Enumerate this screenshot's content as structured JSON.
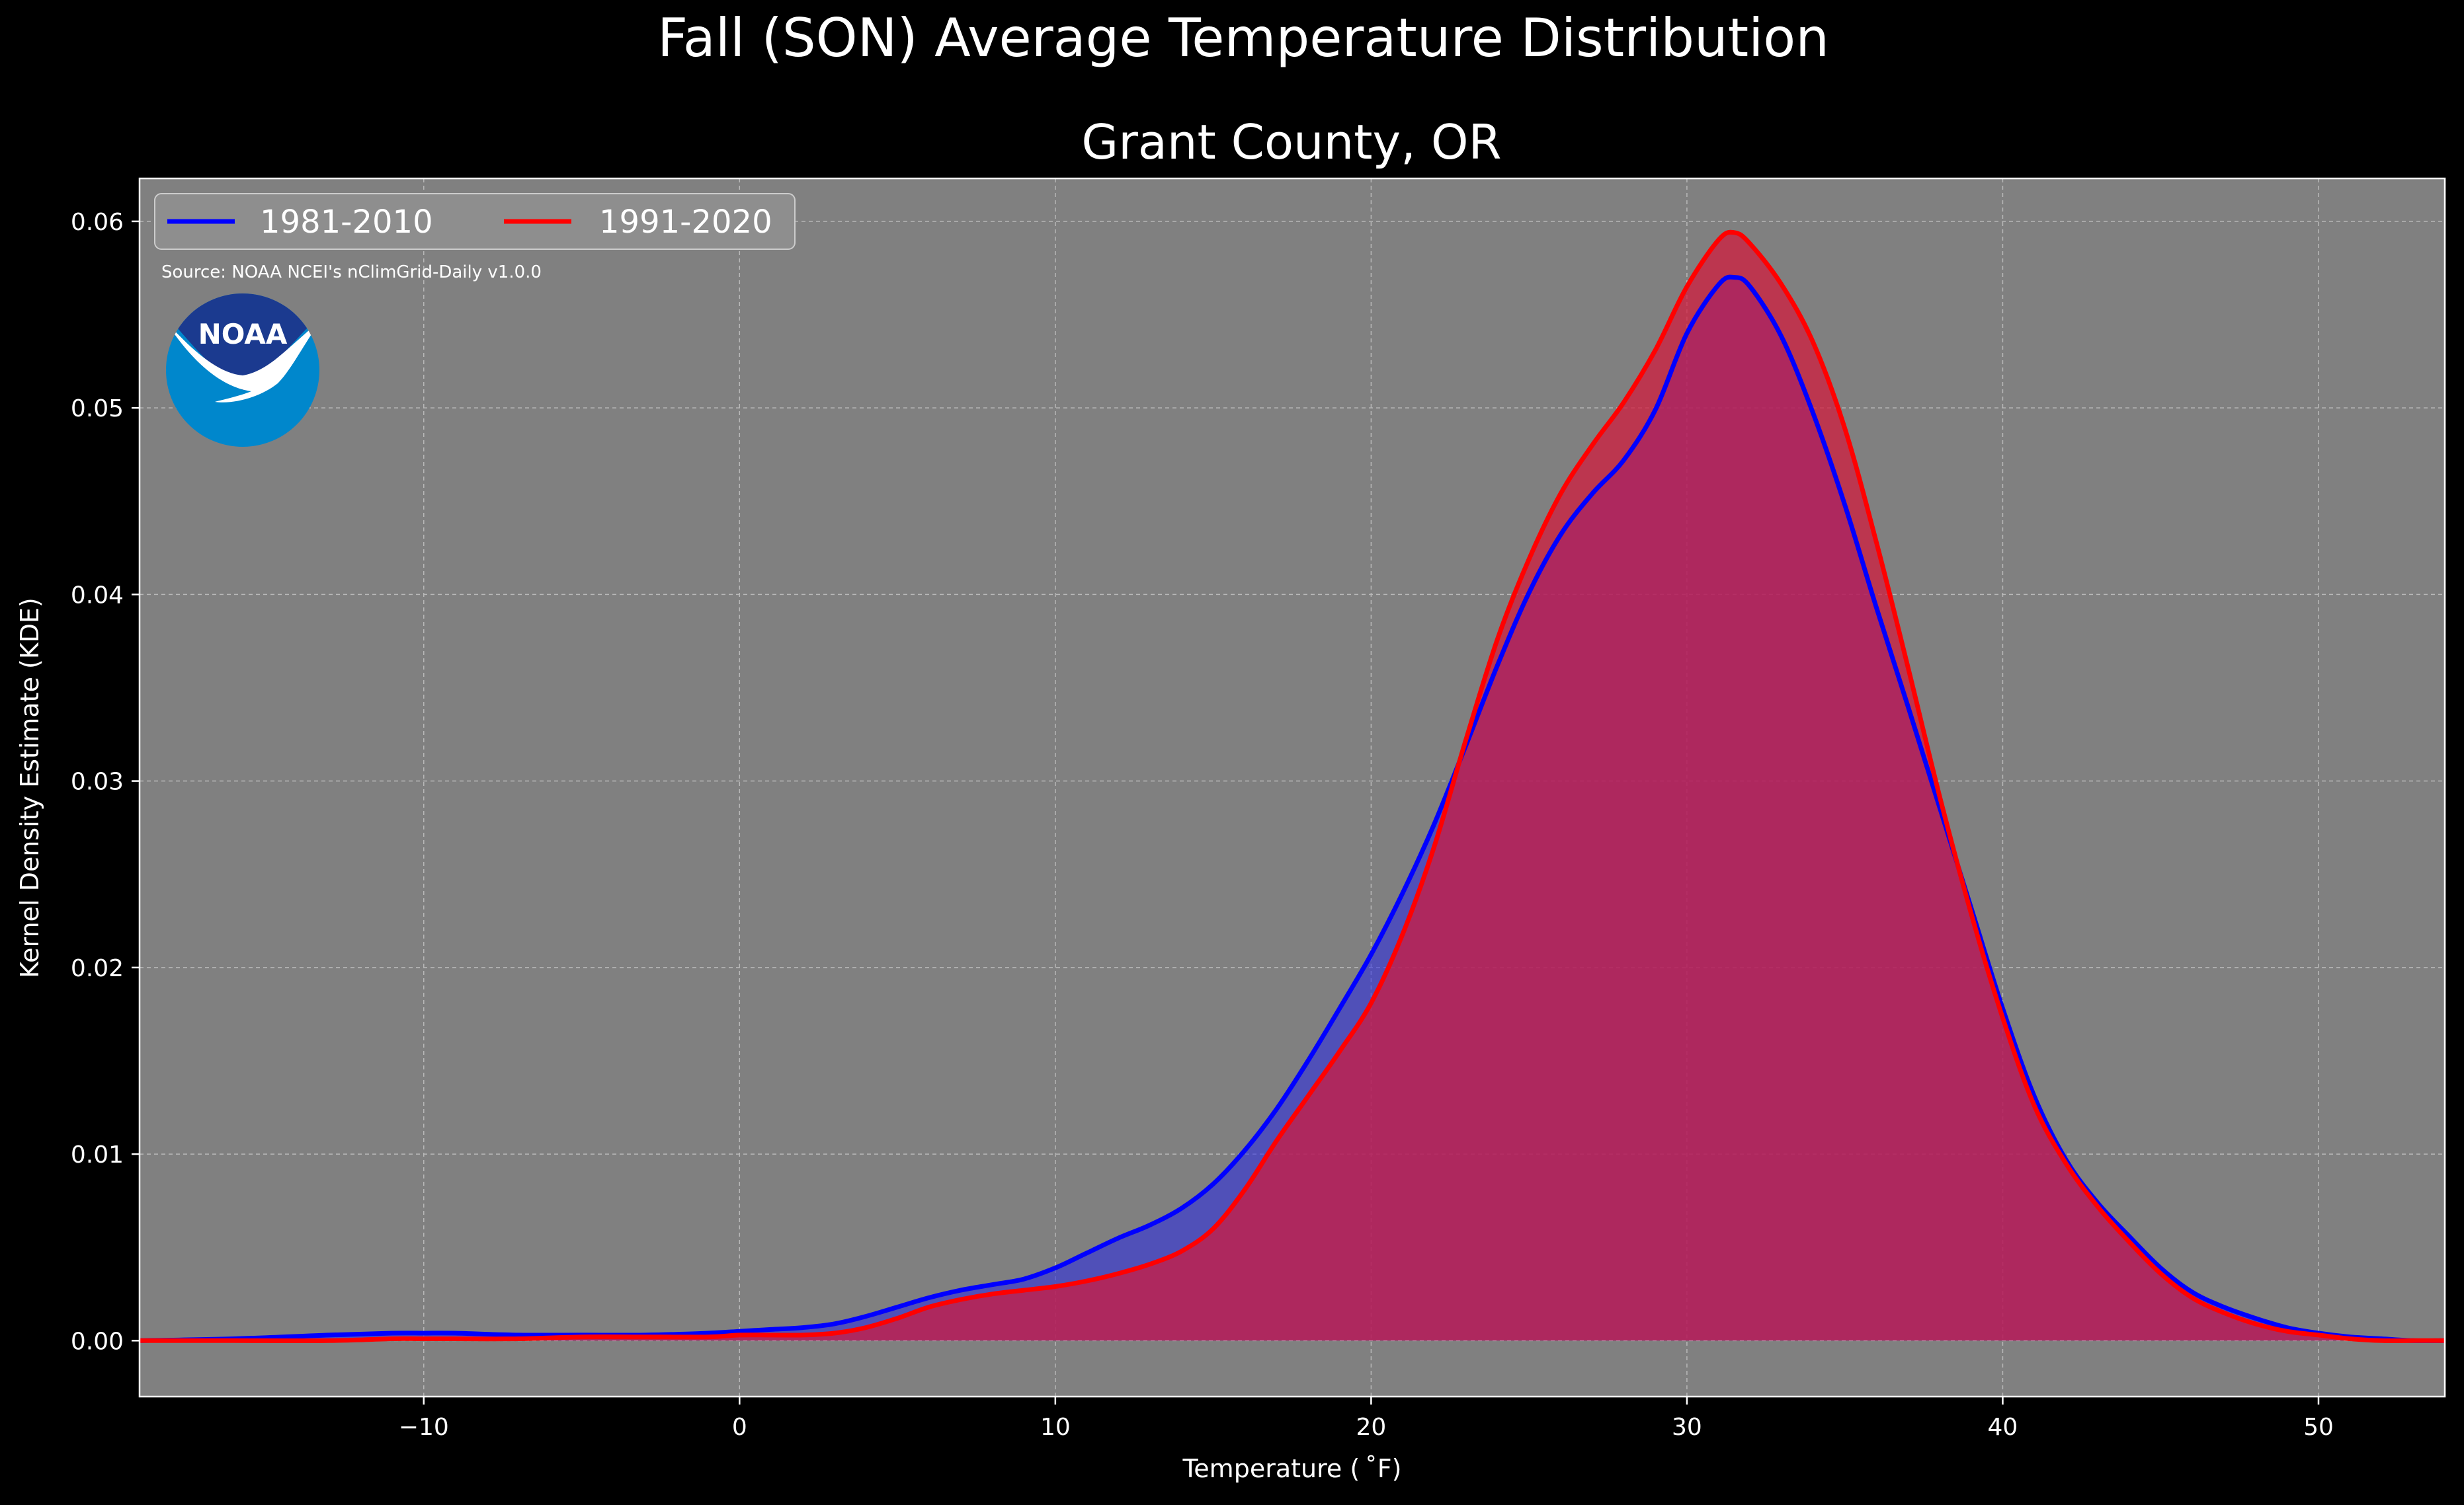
{
  "chart_data": {
    "type": "area",
    "title": "Fall (SON) Average Temperature Distribution",
    "subtitle": "Grant County, OR",
    "xlabel": "Temperature ($^\\circ$F)",
    "xlabel_display": "Temperature ( ˚F)",
    "ylabel": "Kernel Density Estimate (KDE)",
    "xlim": [
      -19,
      54
    ],
    "ylim": [
      -0.003,
      0.0623
    ],
    "xticks": [
      -10,
      0,
      10,
      20,
      30,
      40,
      50
    ],
    "xtick_labels": [
      "−10",
      "0",
      "10",
      "20",
      "30",
      "40",
      "50"
    ],
    "yticks": [
      0.0,
      0.01,
      0.02,
      0.03,
      0.04,
      0.05,
      0.06
    ],
    "ytick_labels": [
      "0.00",
      "0.01",
      "0.02",
      "0.03",
      "0.04",
      "0.05",
      "0.06"
    ],
    "grid": true,
    "legend_position": "top-left",
    "source_note": "Source: NOAA NCEI's nClimGrid-Daily v1.0.0",
    "logo_text": "NOAA",
    "series": [
      {
        "name": "1981-2010",
        "color": "#0000ff",
        "fill": "rgba(40,40,230,0.55)",
        "x": [
          -19,
          -16,
          -13,
          -11,
          -10,
          -9,
          -7,
          -5,
          -3,
          -1,
          0,
          1,
          2,
          3,
          4,
          5,
          6,
          7,
          8,
          9,
          10,
          11,
          12,
          13,
          14,
          15,
          16,
          17,
          18,
          19,
          20,
          21,
          22,
          23,
          24,
          25,
          26,
          27,
          28,
          29,
          30,
          31,
          31.5,
          32,
          33,
          34,
          35,
          36,
          37,
          38,
          39,
          40,
          41,
          42,
          43,
          44,
          45,
          46,
          47,
          48,
          49,
          50,
          51,
          52,
          53,
          54
        ],
        "y": [
          0.0,
          0.0001,
          0.0003,
          0.0004,
          0.0004,
          0.0004,
          0.0003,
          0.0003,
          0.0003,
          0.0004,
          0.0005,
          0.0006,
          0.0007,
          0.0009,
          0.0013,
          0.0018,
          0.0023,
          0.0027,
          0.003,
          0.0033,
          0.0039,
          0.0047,
          0.0055,
          0.0062,
          0.0071,
          0.0084,
          0.0102,
          0.0124,
          0.015,
          0.0178,
          0.0207,
          0.024,
          0.0277,
          0.0319,
          0.0362,
          0.0401,
          0.0432,
          0.0454,
          0.0472,
          0.0499,
          0.054,
          0.0566,
          0.057,
          0.0565,
          0.0538,
          0.0497,
          0.0448,
          0.0393,
          0.034,
          0.0286,
          0.0232,
          0.0178,
          0.0131,
          0.0097,
          0.0074,
          0.0056,
          0.0039,
          0.0026,
          0.0018,
          0.0012,
          0.0007,
          0.0004,
          0.0002,
          0.0001,
          0.0,
          0.0
        ]
      },
      {
        "name": "1991-2020",
        "color": "#ff0000",
        "fill": "rgba(210,25,60,0.72)",
        "x": [
          -19,
          -16,
          -13,
          -11,
          -10,
          -9,
          -7,
          -5,
          -3,
          -1,
          0,
          1,
          2,
          3,
          4,
          5,
          6,
          7,
          8,
          9,
          10,
          11,
          12,
          13,
          14,
          15,
          16,
          17,
          18,
          19,
          20,
          21,
          22,
          23,
          24,
          25,
          26,
          27,
          28,
          29,
          30,
          31,
          31.5,
          32,
          33,
          34,
          35,
          36,
          37,
          38,
          39,
          40,
          41,
          42,
          43,
          44,
          45,
          46,
          47,
          48,
          49,
          50,
          51,
          52,
          53,
          54
        ],
        "y": [
          0.0,
          0.0,
          0.0,
          0.0001,
          0.0001,
          0.0001,
          0.0001,
          0.0002,
          0.0002,
          0.0002,
          0.0003,
          0.0003,
          0.0003,
          0.0004,
          0.0007,
          0.0012,
          0.0018,
          0.0022,
          0.0025,
          0.0027,
          0.0029,
          0.0032,
          0.0036,
          0.0041,
          0.0048,
          0.006,
          0.0081,
          0.0107,
          0.0131,
          0.0155,
          0.0181,
          0.0218,
          0.0265,
          0.0322,
          0.0376,
          0.0419,
          0.0454,
          0.048,
          0.0503,
          0.0531,
          0.0565,
          0.059,
          0.0594,
          0.0588,
          0.0566,
          0.0535,
          0.0489,
          0.0428,
          0.0361,
          0.0292,
          0.0229,
          0.0173,
          0.0126,
          0.0095,
          0.0072,
          0.0053,
          0.0036,
          0.0023,
          0.0015,
          0.0009,
          0.0005,
          0.0003,
          0.0001,
          0.0,
          0.0,
          0.0
        ]
      }
    ]
  }
}
